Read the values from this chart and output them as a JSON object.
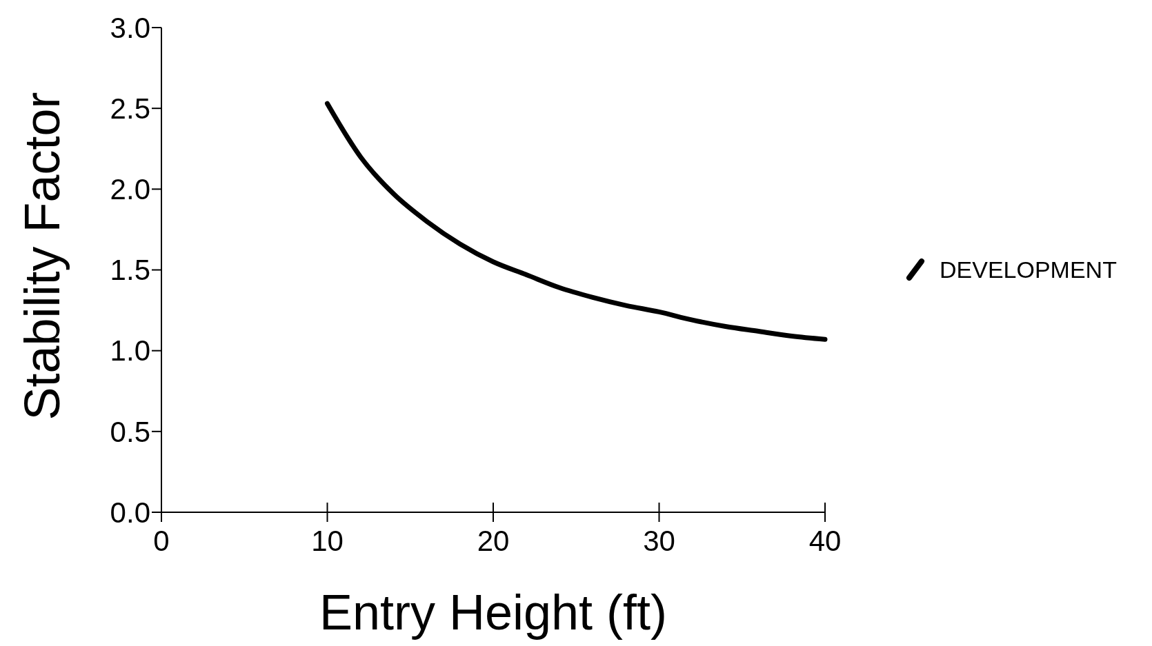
{
  "chart_data": {
    "type": "line",
    "xlabel": "Entry Height (ft)",
    "ylabel": "Stability Factor",
    "x": [
      10,
      12,
      14,
      16,
      18,
      20,
      22,
      24,
      26,
      28,
      30,
      32,
      34,
      36,
      38,
      40
    ],
    "series": [
      {
        "name": "DEVELOPMENT",
        "color": "#000000",
        "values": [
          2.53,
          2.2,
          1.97,
          1.8,
          1.66,
          1.55,
          1.47,
          1.39,
          1.33,
          1.28,
          1.24,
          1.19,
          1.15,
          1.12,
          1.09,
          1.07
        ]
      }
    ],
    "xlim": [
      0,
      40
    ],
    "xticks": [
      0,
      10,
      20,
      30,
      40
    ],
    "ylim": [
      0,
      3
    ],
    "yticks": [
      {
        "value": 0,
        "label": "0.0"
      },
      {
        "value": 0.5,
        "label": "0.5"
      },
      {
        "value": 1,
        "label": "1.0"
      },
      {
        "value": 1.5,
        "label": "1.5"
      },
      {
        "value": 2,
        "label": "2.0"
      },
      {
        "value": 2.5,
        "label": "2.5"
      },
      {
        "value": 3,
        "label": "3.0"
      }
    ],
    "legend": "right",
    "marker": "none",
    "line_style": "solid"
  }
}
